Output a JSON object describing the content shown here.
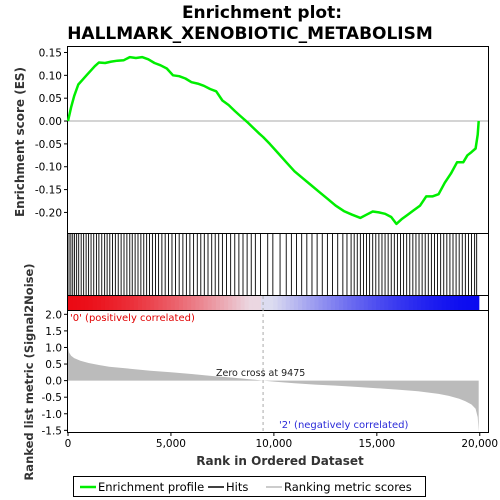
{
  "chart_data": {
    "type": "line",
    "title": [
      "Enrichment plot:",
      "HALLMARK_XENOBIOTIC_METABOLISM"
    ],
    "top_panel": {
      "ylabel": "Enrichment score (ES)",
      "ylim": [
        -0.245,
        0.162
      ],
      "yticks": [
        0.15,
        0.1,
        0.05,
        0.0,
        -0.05,
        -0.1,
        -0.15,
        -0.2
      ],
      "ytick_labels": [
        "0.15",
        "0.10",
        "0.05",
        "0.00",
        "-0.05",
        "-0.10",
        "-0.15",
        "-0.20"
      ],
      "series": [
        {
          "name": "Enrichment profile",
          "color": "#00ee00",
          "x": [
            0,
            150,
            300,
            500,
            700,
            900,
            1100,
            1300,
            1500,
            1800,
            2100,
            2400,
            2700,
            3000,
            3300,
            3600,
            3900,
            4200,
            4500,
            4800,
            5100,
            5400,
            5700,
            6000,
            6300,
            6600,
            6900,
            7200,
            7500,
            7800,
            8100,
            8400,
            8700,
            9000,
            9300,
            9475,
            9800,
            10200,
            10600,
            11000,
            11400,
            11800,
            12200,
            12600,
            13000,
            13400,
            13800,
            14200,
            14500,
            14800,
            15100,
            15400,
            15700,
            15950,
            16200,
            16500,
            16800,
            17100,
            17400,
            17700,
            18000,
            18300,
            18600,
            18900,
            19200,
            19400,
            19600,
            19800,
            19900,
            19950
          ],
          "y": [
            0.0,
            0.03,
            0.055,
            0.08,
            0.09,
            0.1,
            0.11,
            0.12,
            0.128,
            0.127,
            0.13,
            0.132,
            0.133,
            0.14,
            0.138,
            0.14,
            0.135,
            0.127,
            0.122,
            0.115,
            0.1,
            0.098,
            0.093,
            0.085,
            0.082,
            0.077,
            0.07,
            0.065,
            0.045,
            0.035,
            0.022,
            0.01,
            -0.002,
            -0.015,
            -0.028,
            -0.035,
            -0.05,
            -0.07,
            -0.09,
            -0.11,
            -0.125,
            -0.14,
            -0.155,
            -0.17,
            -0.185,
            -0.197,
            -0.205,
            -0.212,
            -0.205,
            -0.198,
            -0.2,
            -0.203,
            -0.21,
            -0.225,
            -0.215,
            -0.205,
            -0.195,
            -0.185,
            -0.165,
            -0.165,
            -0.16,
            -0.135,
            -0.115,
            -0.09,
            -0.09,
            -0.075,
            -0.068,
            -0.06,
            -0.03,
            0.0
          ]
        }
      ]
    },
    "hits_panel": {
      "label": "Hits",
      "hit_positions": [
        50,
        140,
        230,
        320,
        420,
        520,
        640,
        760,
        880,
        1000,
        1120,
        1250,
        1380,
        1500,
        1640,
        1780,
        1900,
        2030,
        2160,
        2300,
        2440,
        2580,
        2720,
        2860,
        3000,
        3120,
        3260,
        3400,
        3540,
        3680,
        3820,
        3960,
        4100,
        4250,
        4400,
        4560,
        4720,
        4880,
        5050,
        5220,
        5400,
        5580,
        5750,
        5920,
        6100,
        6280,
        6450,
        6620,
        6800,
        6980,
        7150,
        7320,
        7500,
        7700,
        7900,
        8100,
        8300,
        8500,
        8700,
        8900,
        9100,
        9350,
        9700,
        9950,
        10300,
        10600,
        10850,
        11100,
        11350,
        11600,
        11850,
        12100,
        12350,
        12600,
        12850,
        13100,
        13350,
        13550,
        13750,
        13900,
        14050,
        14200,
        14350,
        14500,
        14650,
        14800,
        14950,
        15100,
        15250,
        15400,
        15550,
        15700,
        15850,
        16000,
        16150,
        16300,
        16450,
        16600,
        16750,
        16900,
        17050,
        17200,
        17350,
        17500,
        17650,
        17800,
        17950,
        18100,
        18250,
        18400,
        18550,
        18700,
        18850,
        19000,
        19150,
        19300,
        19450,
        19600,
        19750,
        19850
      ]
    },
    "bottom_panel": {
      "ylabel": "Ranked list metric (Signal2Noise)",
      "xlabel": "Rank in Ordered Dataset",
      "ylim": [
        -1.55,
        2.1
      ],
      "yticks": [
        2.0,
        1.5,
        1.0,
        0.5,
        0.0,
        -0.5,
        -1.0,
        -1.5
      ],
      "ytick_labels": [
        "2.0",
        "1.5",
        "1.0",
        "0.5",
        "0.0",
        "-0.5",
        "-1.0",
        "-1.5"
      ],
      "xlim": [
        0,
        20400
      ],
      "xticks": [
        0,
        5000,
        10000,
        15000,
        20000
      ],
      "xtick_labels": [
        "0",
        "5,000",
        "10,000",
        "15,000",
        "20,000"
      ],
      "metric_curve": {
        "x": [
          0,
          50,
          150,
          300,
          600,
          1000,
          1500,
          2000,
          3000,
          4000,
          5000,
          6000,
          7000,
          8000,
          9000,
          9475,
          10000,
          11000,
          12000,
          13000,
          14000,
          15000,
          16000,
          17000,
          18000,
          18500,
          19000,
          19300,
          19600,
          19800,
          19900,
          19950
        ],
        "y": [
          1.0,
          0.85,
          0.75,
          0.68,
          0.6,
          0.53,
          0.47,
          0.42,
          0.36,
          0.3,
          0.25,
          0.2,
          0.14,
          0.09,
          0.03,
          0.0,
          -0.03,
          -0.08,
          -0.12,
          -0.15,
          -0.19,
          -0.23,
          -0.27,
          -0.32,
          -0.4,
          -0.46,
          -0.55,
          -0.62,
          -0.72,
          -0.85,
          -1.1,
          -1.55
        ]
      },
      "zero_cross_label": "Zero cross at 9475",
      "zero_cross": 9475,
      "positive_label": "'0' (positively correlated)",
      "negative_label": "'2' (negatively correlated)"
    },
    "legend": [
      {
        "label": "Enrichment profile",
        "color": "#00ee00"
      },
      {
        "label": "Hits",
        "color": "#000000"
      },
      {
        "label": "Ranking metric scores",
        "color": "#bbbbbb"
      }
    ]
  }
}
